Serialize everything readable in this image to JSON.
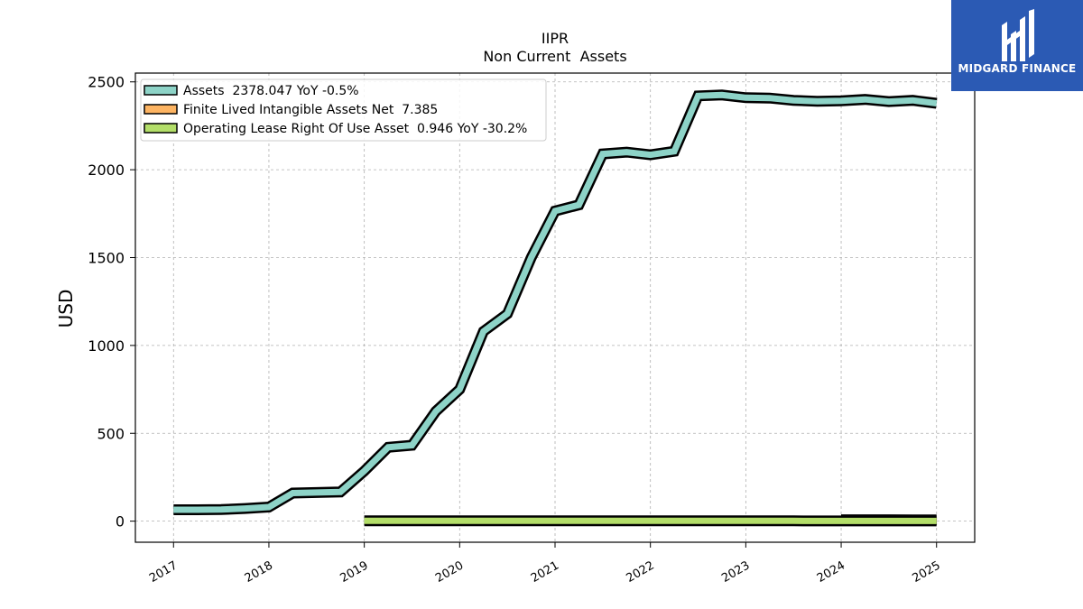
{
  "chart_data": {
    "type": "line",
    "title": "IIPR",
    "subtitle": "Non Current  Assets",
    "ylabel": "USD",
    "ylim": [
      -120,
      2550
    ],
    "yticks": [
      0,
      500,
      1000,
      1500,
      2000,
      2500
    ],
    "xlim": [
      2016.6,
      2025.4
    ],
    "xticks": [
      "2017",
      "2018",
      "2019",
      "2020",
      "2021",
      "2022",
      "2023",
      "2024",
      "2025"
    ],
    "grid": true,
    "legend_position": "top-left",
    "series": [
      {
        "name": "Assets  2378.047 YoY -0.5%",
        "color": "#8dd3c7",
        "x": [
          2017.0,
          2017.25,
          2017.5,
          2017.75,
          2018.0,
          2018.25,
          2018.5,
          2018.75,
          2019.0,
          2019.25,
          2019.5,
          2019.75,
          2020.0,
          2020.25,
          2020.5,
          2020.75,
          2021.0,
          2021.25,
          2021.5,
          2021.75,
          2022.0,
          2022.25,
          2022.5,
          2022.75,
          2023.0,
          2023.25,
          2023.5,
          2023.75,
          2024.0,
          2024.25,
          2024.5,
          2024.75,
          2025.0
        ],
        "values": [
          65,
          65,
          66,
          72,
          80,
          160,
          163,
          166,
          285,
          420,
          432,
          625,
          750,
          1080,
          1180,
          1500,
          1765,
          1800,
          2090,
          2100,
          2085,
          2105,
          2420,
          2425,
          2410,
          2408,
          2395,
          2390,
          2392,
          2400,
          2388,
          2395,
          2378
        ]
      },
      {
        "name": "Finite Lived Intangible Assets Net  7.385",
        "color": "#fdb462",
        "x": [
          2024.0,
          2024.25,
          2024.5,
          2024.75,
          2025.0
        ],
        "values": [
          7.9,
          7.8,
          7.6,
          7.5,
          7.385
        ]
      },
      {
        "name": "Operating Lease Right Of Use Asset  0.946 YoY -30.2%",
        "color": "#b3de69",
        "x": [
          2019.0,
          2019.25,
          2019.5,
          2019.75,
          2020.0,
          2020.25,
          2020.5,
          2020.75,
          2021.0,
          2021.25,
          2021.5,
          2021.75,
          2022.0,
          2022.25,
          2022.5,
          2022.75,
          2023.0,
          2023.25,
          2023.5,
          2023.75,
          2024.0,
          2024.25,
          2024.5,
          2024.75,
          2025.0
        ],
        "values": [
          1.5,
          1.6,
          1.7,
          1.8,
          1.8,
          1.7,
          1.7,
          1.7,
          1.6,
          1.6,
          1.6,
          1.5,
          1.5,
          1.8,
          1.8,
          1.7,
          1.7,
          1.6,
          1.5,
          1.4,
          1.4,
          1.3,
          1.2,
          1.1,
          0.946
        ]
      }
    ]
  },
  "logo": {
    "text": "MIDGARD FINANCE",
    "icon": "midgard-logo-icon",
    "background": "#2b5ab4"
  }
}
